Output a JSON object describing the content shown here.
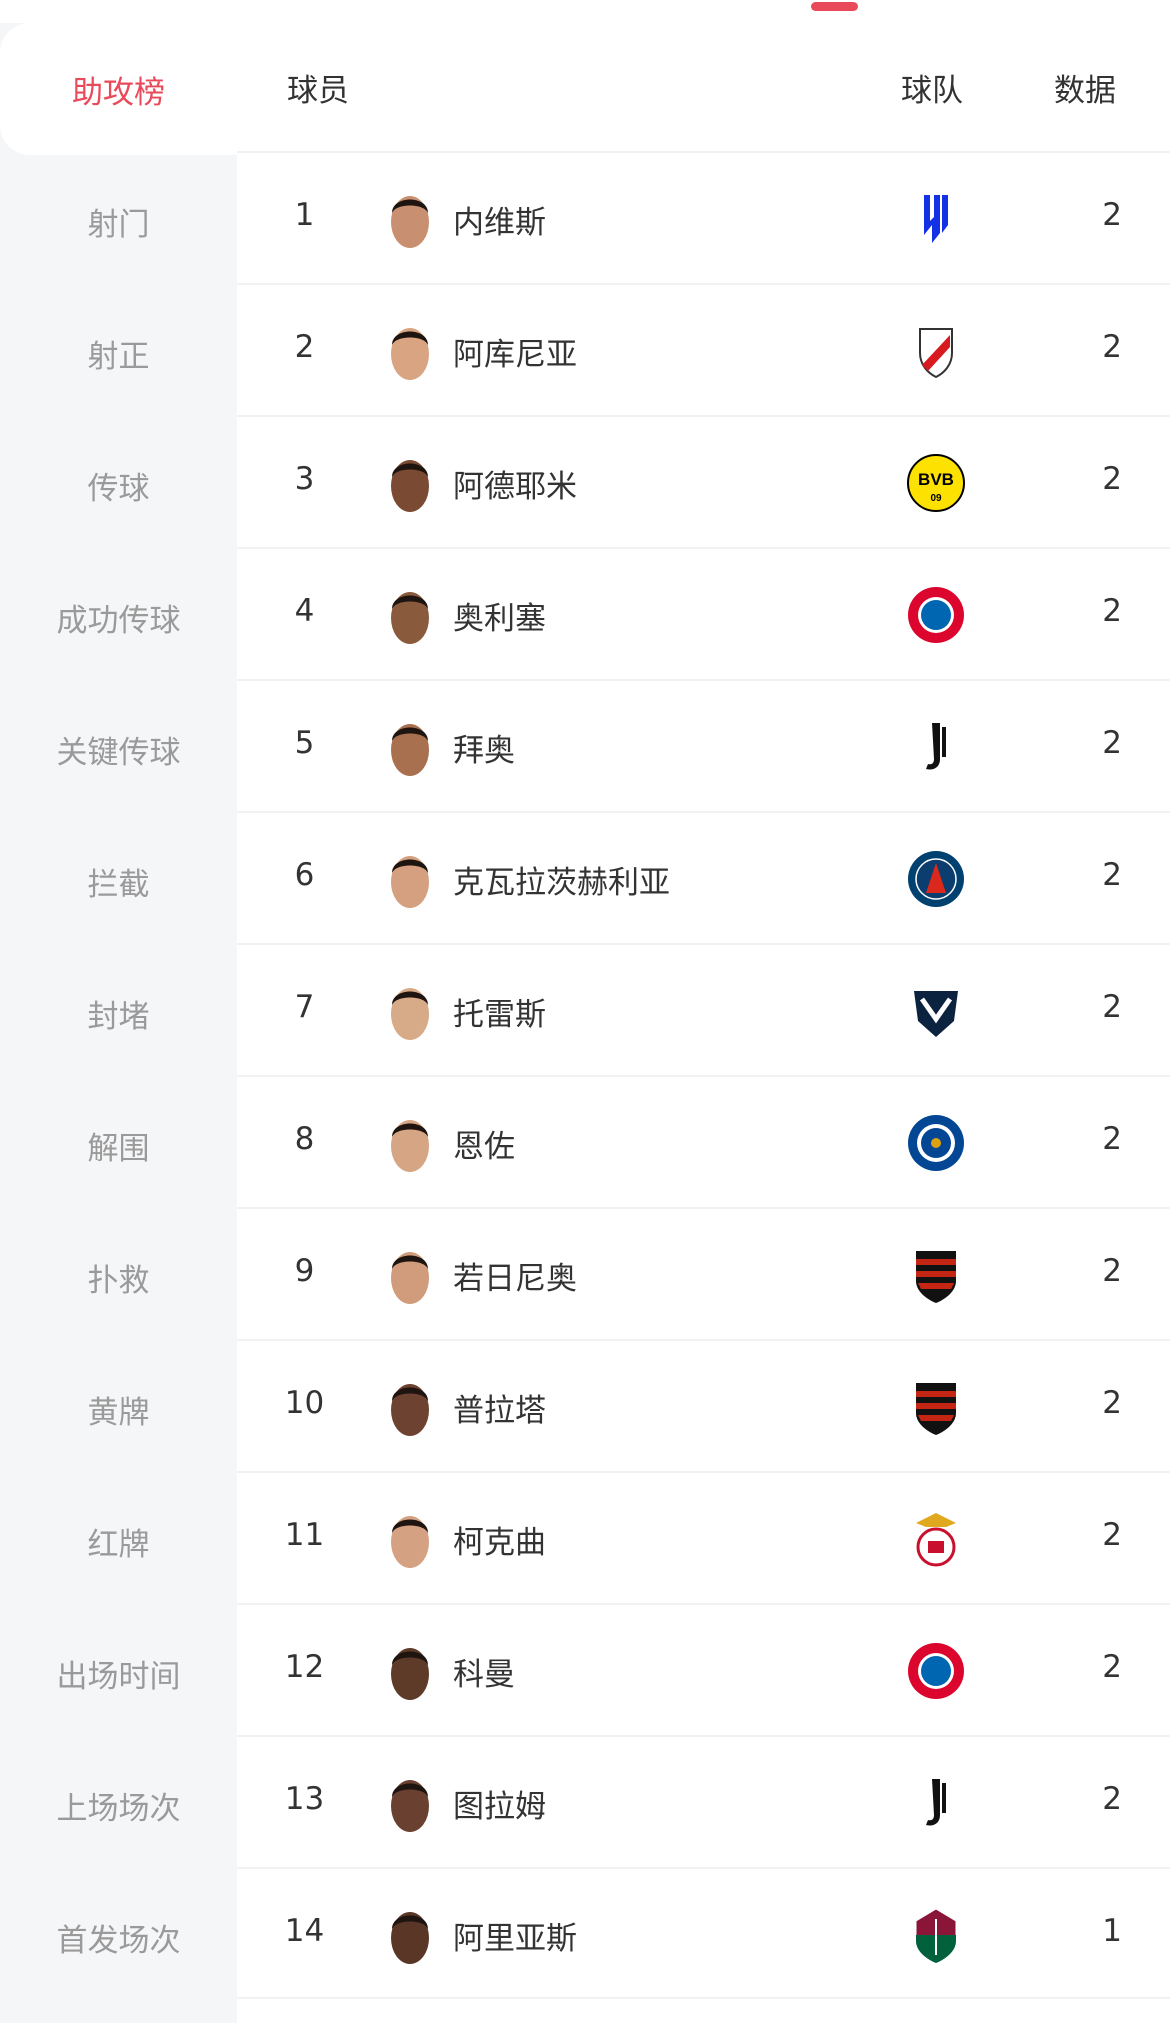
{
  "accent_color": "#e84a5a",
  "sidebar": {
    "items": [
      {
        "label": "助攻榜",
        "active": true
      },
      {
        "label": "射门"
      },
      {
        "label": "射正"
      },
      {
        "label": "传球"
      },
      {
        "label": "成功传球"
      },
      {
        "label": "关键传球"
      },
      {
        "label": "拦截"
      },
      {
        "label": "封堵"
      },
      {
        "label": "解围"
      },
      {
        "label": "扑救"
      },
      {
        "label": "黄牌"
      },
      {
        "label": "红牌"
      },
      {
        "label": "出场时间"
      },
      {
        "label": "上场场次"
      },
      {
        "label": "首发场次"
      }
    ]
  },
  "table": {
    "headers": {
      "player": "球员",
      "team": "球队",
      "data": "数据"
    },
    "rows": [
      {
        "rank": "1",
        "name": "内维斯",
        "team_icon": "al-hilal-logo",
        "value": "2",
        "skin": "#c89070"
      },
      {
        "rank": "2",
        "name": "阿库尼亚",
        "team_icon": "river-plate-logo",
        "value": "2",
        "skin": "#d9a482"
      },
      {
        "rank": "3",
        "name": "阿德耶米",
        "team_icon": "dortmund-logo",
        "value": "2",
        "skin": "#7a4a32"
      },
      {
        "rank": "4",
        "name": "奥利塞",
        "team_icon": "bayern-logo",
        "value": "2",
        "skin": "#8a5a3c"
      },
      {
        "rank": "5",
        "name": "拜奥",
        "team_icon": "juventus-logo",
        "value": "2",
        "skin": "#a8704e"
      },
      {
        "rank": "6",
        "name": "克瓦拉茨赫利亚",
        "team_icon": "psg-logo",
        "value": "2",
        "skin": "#d4a080"
      },
      {
        "rank": "7",
        "name": "托雷斯",
        "team_icon": "monterrey-logo",
        "value": "2",
        "skin": "#d8ab88"
      },
      {
        "rank": "8",
        "name": "恩佐",
        "team_icon": "chelsea-logo",
        "value": "2",
        "skin": "#d6a684"
      },
      {
        "rank": "9",
        "name": "若日尼奥",
        "team_icon": "flamengo-logo",
        "value": "2",
        "skin": "#d09c7c"
      },
      {
        "rank": "10",
        "name": "普拉塔",
        "team_icon": "flamengo-logo",
        "value": "2",
        "skin": "#6e4230"
      },
      {
        "rank": "11",
        "name": "柯克曲",
        "team_icon": "benfica-logo",
        "value": "2",
        "skin": "#d4a282"
      },
      {
        "rank": "12",
        "name": "科曼",
        "team_icon": "bayern-logo",
        "value": "2",
        "skin": "#5e3a28"
      },
      {
        "rank": "13",
        "name": "图拉姆",
        "team_icon": "juventus-logo",
        "value": "2",
        "skin": "#6a4030"
      },
      {
        "rank": "14",
        "name": "阿里亚斯",
        "team_icon": "fluminense-logo",
        "value": "1",
        "skin": "#5a3626"
      }
    ]
  }
}
